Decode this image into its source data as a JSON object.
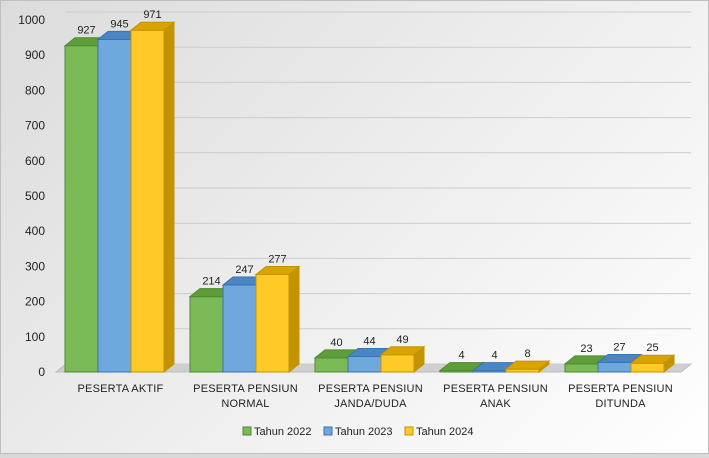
{
  "chart_data": {
    "type": "bar",
    "categories": [
      [
        "PESERTA AKTIF"
      ],
      [
        "PESERTA PENSIUN",
        "NORMAL"
      ],
      [
        "PESERTA PENSIUN",
        "JANDA/DUDA"
      ],
      [
        "PESERTA PENSIUN",
        "ANAK"
      ],
      [
        "PESERTA PENSIUN",
        "DITUNDA"
      ]
    ],
    "series": [
      {
        "name": "Tahun 2022",
        "values": [
          927,
          214,
          40,
          4,
          23
        ]
      },
      {
        "name": "Tahun 2023",
        "values": [
          945,
          247,
          44,
          4,
          27
        ]
      },
      {
        "name": "Tahun 2024",
        "values": [
          971,
          277,
          49,
          8,
          25
        ]
      }
    ],
    "ylim": [
      0,
      1000
    ],
    "yticks": [
      0,
      100,
      200,
      300,
      400,
      500,
      600,
      700,
      800,
      900,
      1000
    ],
    "grid": true,
    "legend_position": "bottom",
    "colors": {
      "Tahun 2022": {
        "front": "#7cba58",
        "top": "#5e9e3a",
        "side": "#4f8a30"
      },
      "Tahun 2023": {
        "front": "#6fa8dc",
        "top": "#4a86c5",
        "side": "#3b73ad"
      },
      "Tahun 2024": {
        "front": "#ffc928",
        "top": "#d9a400",
        "side": "#c49300"
      }
    }
  }
}
